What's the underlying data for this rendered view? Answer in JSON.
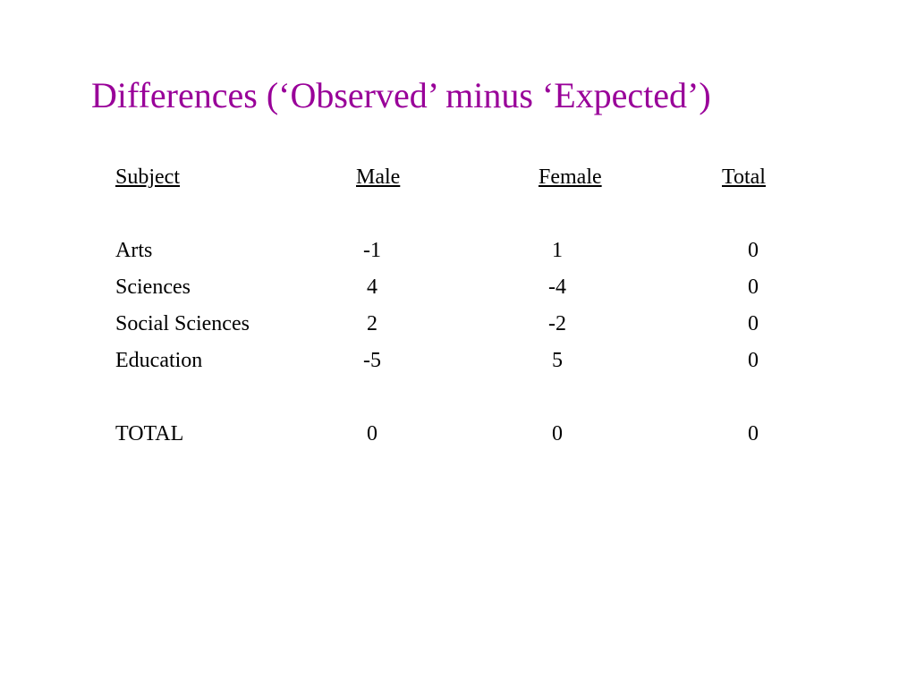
{
  "slide": {
    "title": "Differences (‘Observed’ minus ‘Expected’)",
    "title_color": "#990099"
  },
  "table": {
    "headers": {
      "subject": "Subject",
      "male": "Male",
      "female": "Female",
      "total": "Total"
    },
    "rows": [
      {
        "subject": "Arts",
        "male": "-1",
        "female": "1",
        "total": "0"
      },
      {
        "subject": "Sciences",
        "male": "4",
        "female": "-4",
        "total": "0"
      },
      {
        "subject": "Social Sciences",
        "male": "2",
        "female": "-2",
        "total": "0"
      },
      {
        "subject": "Education",
        "male": "-5",
        "female": "5",
        "total": "0"
      }
    ],
    "total_row": {
      "subject": "TOTAL",
      "male": "0",
      "female": "0",
      "total": "0"
    }
  }
}
